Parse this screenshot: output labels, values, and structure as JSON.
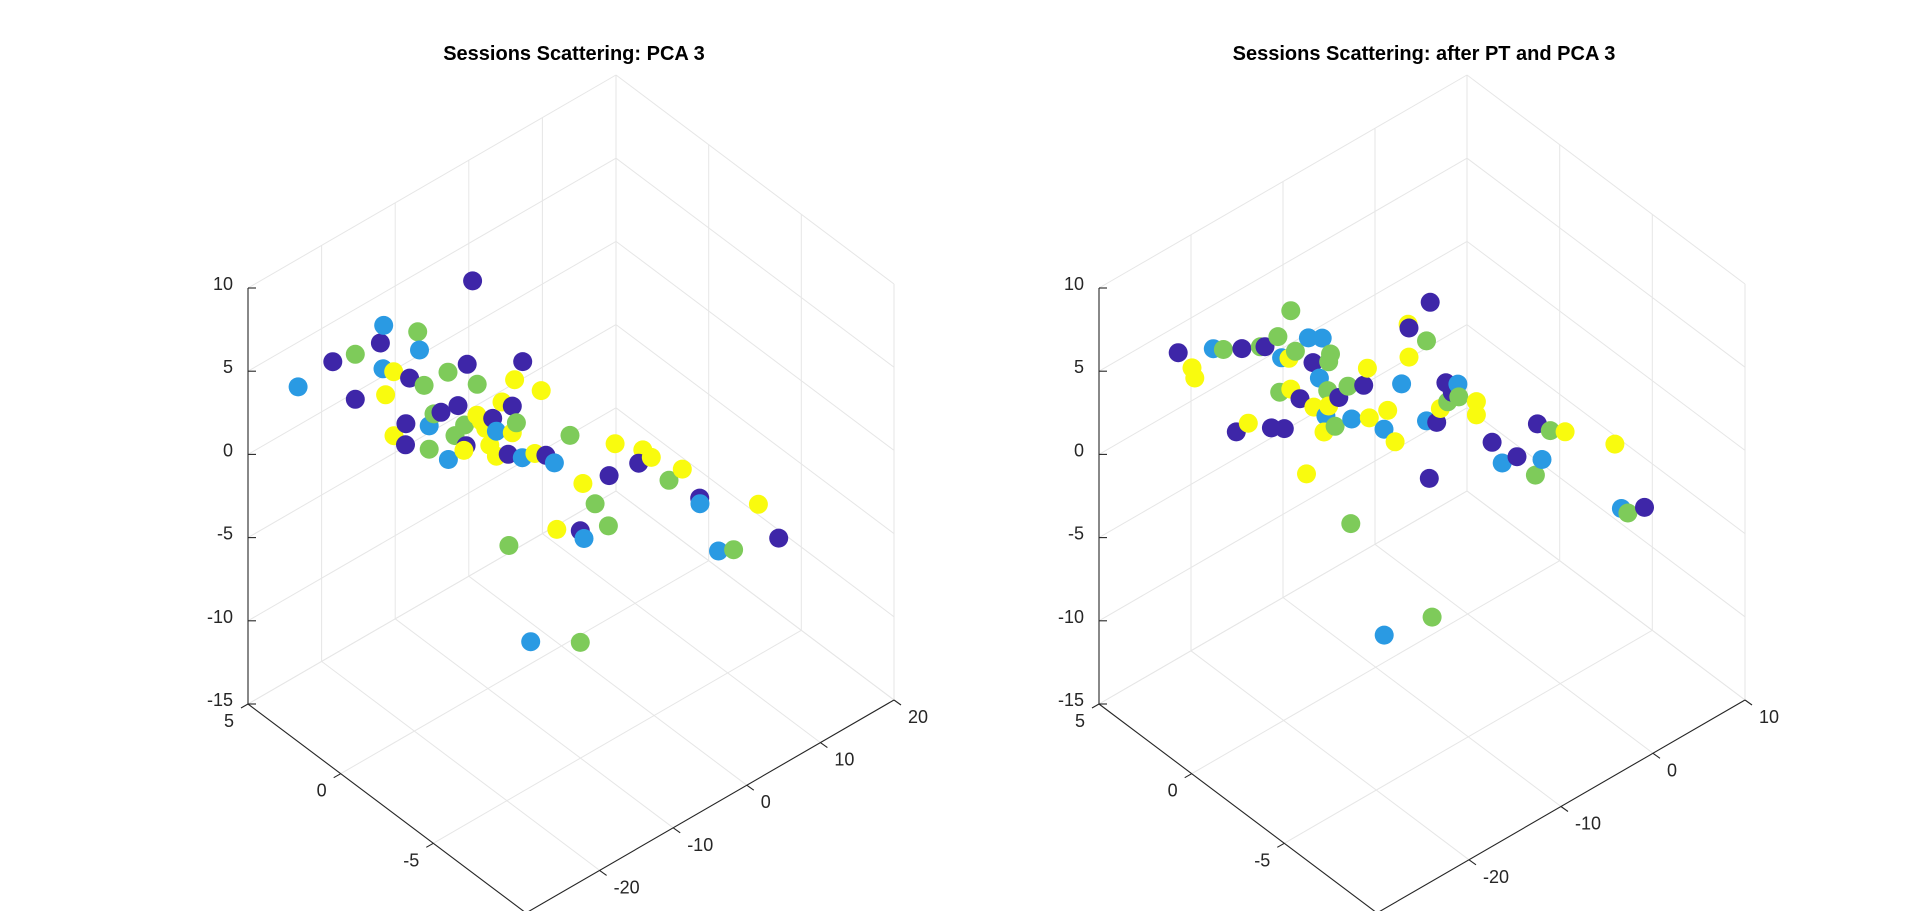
{
  "figure": {
    "background": "#ffffff"
  },
  "colors": {
    "c1": "#3e26a8",
    "c2": "#2a9ae3",
    "c3": "#7ecb5a",
    "c4": "#f9fb0e"
  },
  "chart_data": [
    {
      "type": "scatter",
      "title": "Sessions Scattering: PCA 3",
      "xlabel": "",
      "ylabel": "",
      "zlabel": "",
      "xlim": [
        -30,
        20
      ],
      "ylim": [
        -10,
        5
      ],
      "zlim": [
        -15,
        10
      ],
      "xticks": [
        "-30",
        "-20",
        "-10",
        "0",
        "10",
        "20"
      ],
      "yticks": [
        "-10",
        "-5",
        "0",
        "5"
      ],
      "zticks": [
        "-15",
        "-10",
        "-5",
        "0",
        "5",
        "10"
      ],
      "grid": true,
      "view": "3d-default",
      "points": [
        {
          "x": -21.5,
          "y": 3.8,
          "z": 4.4,
          "c": "c1"
        },
        {
          "x": -24.7,
          "y": 4.4,
          "z": 3.2,
          "c": "c2"
        },
        {
          "x": -19.7,
          "y": 3.3,
          "z": 4.8,
          "c": "c3"
        },
        {
          "x": -18.2,
          "y": 2.4,
          "z": 4.3,
          "c": "c2"
        },
        {
          "x": -17.3,
          "y": 2.9,
          "z": 5.2,
          "c": "c1"
        },
        {
          "x": -15.5,
          "y": 1.6,
          "z": 6.5,
          "c": "c3"
        },
        {
          "x": -17.5,
          "y": 2.1,
          "z": 4.2,
          "c": "c4"
        },
        {
          "x": -15.9,
          "y": 1.1,
          "z": 3.8,
          "c": "c3"
        },
        {
          "x": -16.6,
          "y": 1.6,
          "z": 4.0,
          "c": "c1"
        },
        {
          "x": -16.1,
          "y": 3.2,
          "z": 5.7,
          "c": "c2"
        },
        {
          "x": -13.9,
          "y": 0.6,
          "z": 4.5,
          "c": "c3"
        },
        {
          "x": -12.3,
          "y": 0.2,
          "z": 4.9,
          "c": "c1"
        },
        {
          "x": -8.3,
          "y": 1.5,
          "z": 7.8,
          "c": "c1"
        },
        {
          "x": -9.3,
          "y": -2.6,
          "z": 4.9,
          "c": "c4"
        },
        {
          "x": -10.4,
          "y": -1.6,
          "z": 5.0,
          "c": "c4"
        },
        {
          "x": -9.8,
          "y": -1.8,
          "z": 6.1,
          "c": "c1"
        },
        {
          "x": -11.1,
          "y": -1.2,
          "z": 3.5,
          "c": "c4"
        },
        {
          "x": -12.5,
          "y": -0.4,
          "z": 2.4,
          "c": "c4"
        },
        {
          "x": -11.7,
          "y": -0.1,
          "z": 3.8,
          "c": "c3"
        },
        {
          "x": -14.5,
          "y": 1.9,
          "z": 4.9,
          "c": "c2"
        },
        {
          "x": -12.3,
          "y": 0.7,
          "z": 2.0,
          "c": "c1"
        },
        {
          "x": -11.4,
          "y": -0.2,
          "z": 1.6,
          "c": "c4"
        },
        {
          "x": -10.6,
          "y": -0.5,
          "z": 1.8,
          "c": "c1"
        },
        {
          "x": -9.4,
          "y": -1.3,
          "z": 1.9,
          "c": "c3"
        },
        {
          "x": -9.2,
          "y": -1.0,
          "z": 1.0,
          "c": "c4"
        },
        {
          "x": -10.6,
          "y": -0.7,
          "z": 1.2,
          "c": "c2"
        },
        {
          "x": -9.7,
          "y": -1.2,
          "z": 2.9,
          "c": "c1"
        },
        {
          "x": -10.8,
          "y": -0.2,
          "z": 1.0,
          "c": "c4"
        },
        {
          "x": -11.9,
          "y": 0.5,
          "z": 0.9,
          "c": "c3"
        },
        {
          "x": -13.1,
          "y": 1.3,
          "z": 1.3,
          "c": "c1"
        },
        {
          "x": -13.8,
          "y": 1.4,
          "z": 1.3,
          "c": "c3"
        },
        {
          "x": -14.2,
          "y": 1.5,
          "z": 0.6,
          "c": "c2"
        },
        {
          "x": -15.6,
          "y": 2.2,
          "z": 0.5,
          "c": "c1"
        },
        {
          "x": -16.2,
          "y": 2.6,
          "z": -0.4,
          "c": "c4"
        },
        {
          "x": -15.4,
          "y": 2.3,
          "z": -0.9,
          "c": "c1"
        },
        {
          "x": -14.2,
          "y": 1.5,
          "z": -0.8,
          "c": "c3"
        },
        {
          "x": -12.7,
          "y": 0.7,
          "z": 0.3,
          "c": "c3"
        },
        {
          "x": -12.2,
          "y": 0.3,
          "z": -0.1,
          "c": "c1"
        },
        {
          "x": -11.0,
          "y": -0.5,
          "z": 0.3,
          "c": "c4"
        },
        {
          "x": -8.4,
          "y": -1.9,
          "z": 0.3,
          "c": "c4"
        },
        {
          "x": -7.9,
          "y": -2.3,
          "z": 0.4,
          "c": "c1"
        },
        {
          "x": -7.0,
          "y": -2.4,
          "z": -0.2,
          "c": "c2"
        },
        {
          "x": -8.6,
          "y": -1.3,
          "z": -0.4,
          "c": "c2"
        },
        {
          "x": -9.5,
          "y": -0.9,
          "z": -0.3,
          "c": "c1"
        },
        {
          "x": -10.1,
          "y": -0.5,
          "z": -0.6,
          "c": "c4"
        },
        {
          "x": -12.0,
          "y": 0.5,
          "z": -0.6,
          "c": "c4"
        },
        {
          "x": -13.1,
          "y": 0.9,
          "z": -1.2,
          "c": "c2"
        },
        {
          "x": -5.9,
          "y": -3.5,
          "z": -0.8,
          "c": "c4"
        },
        {
          "x": -4.1,
          "y": -4.2,
          "z": -0.2,
          "c": "c1"
        },
        {
          "x": -6.4,
          "y": -3.0,
          "z": 1.8,
          "c": "c3"
        },
        {
          "x": -4.3,
          "y": -4.6,
          "z": 2.1,
          "c": "c4"
        },
        {
          "x": -2.8,
          "y": -5.5,
          "z": 2.1,
          "c": "c4"
        },
        {
          "x": -1.9,
          "y": -5.6,
          "z": 1.5,
          "c": "c4"
        },
        {
          "x": -2.1,
          "y": -5.0,
          "z": 0.7,
          "c": "c1"
        },
        {
          "x": -0.2,
          "y": -6.6,
          "z": 1.2,
          "c": "c4"
        },
        {
          "x": -0.5,
          "y": -6.0,
          "z": 0.1,
          "c": "c3"
        },
        {
          "x": 1.4,
          "y": -6.9,
          "z": -0.7,
          "c": "c1"
        },
        {
          "x": 1.7,
          "y": -6.8,
          "z": -1.2,
          "c": "c2"
        },
        {
          "x": -9.2,
          "y": -3.4,
          "z": -2.8,
          "c": "c4"
        },
        {
          "x": -5.0,
          "y": -3.8,
          "z": -2.0,
          "c": "c3"
        },
        {
          "x": -6.0,
          "y": -3.4,
          "z": -3.7,
          "c": "c1"
        },
        {
          "x": -6.0,
          "y": -3.6,
          "z": -4.0,
          "c": "c2"
        },
        {
          "x": -4.2,
          "y": -4.2,
          "z": -3.2,
          "c": "c3"
        },
        {
          "x": -8.4,
          "y": -0.5,
          "z": -6.4,
          "c": "c3"
        },
        {
          "x": -7.2,
          "y": -1.2,
          "z": -11.9,
          "c": "c2"
        },
        {
          "x": -5.0,
          "y": -3.0,
          "z": -11.0,
          "c": "c3"
        },
        {
          "x": 2.2,
          "y": -7.6,
          "z": -3.5,
          "c": "c2"
        },
        {
          "x": 3.5,
          "y": -7.9,
          "z": -3.5,
          "c": "c3"
        },
        {
          "x": 5.6,
          "y": -9.5,
          "z": -2.0,
          "c": "c1"
        },
        {
          "x": 4.6,
          "y": -8.8,
          "z": -0.3,
          "c": "c4"
        },
        {
          "x": -19.2,
          "y": 3.5,
          "z": 1.8,
          "c": "c1"
        },
        {
          "x": -17.6,
          "y": 2.5,
          "z": 2.5,
          "c": "c4"
        }
      ]
    },
    {
      "type": "scatter",
      "title": "Sessions Scattering: after PT and PCA 3",
      "xlabel": "",
      "ylabel": "",
      "zlabel": "",
      "xlim": [
        -30,
        10
      ],
      "ylim": [
        -10,
        5
      ],
      "zlim": [
        -15,
        10
      ],
      "xticks": [
        "-30",
        "-20",
        "-10",
        "0",
        "10"
      ],
      "yticks": [
        "-10",
        "-5",
        "0",
        "5"
      ],
      "zticks": [
        "-15",
        "-10",
        "-5",
        "0",
        "5",
        "10"
      ],
      "grid": true,
      "view": "3d-default",
      "points": [
        {
          "x": -22.4,
          "y": 4.5,
          "z": 4.1,
          "c": "c1"
        },
        {
          "x": -21.3,
          "y": 4.3,
          "z": 3.0,
          "c": "c4"
        },
        {
          "x": -21.0,
          "y": 4.3,
          "z": 2.3,
          "c": "c4"
        },
        {
          "x": -20.6,
          "y": 3.5,
          "z": 4.6,
          "c": "c2"
        },
        {
          "x": -19.5,
          "y": 3.5,
          "z": 4.2,
          "c": "c3"
        },
        {
          "x": -18.7,
          "y": 2.9,
          "z": 4.5,
          "c": "c1"
        },
        {
          "x": -18.1,
          "y": 2.2,
          "z": 5.0,
          "c": "c3"
        },
        {
          "x": -17.0,
          "y": 1.8,
          "z": 5.6,
          "c": "c3"
        },
        {
          "x": -16.4,
          "y": 1.4,
          "z": 7.3,
          "c": "c3"
        },
        {
          "x": -15.1,
          "y": 1.1,
          "z": 5.5,
          "c": "c2"
        },
        {
          "x": -14.4,
          "y": 0.7,
          "z": 5.6,
          "c": "c2"
        },
        {
          "x": -15.9,
          "y": 1.4,
          "z": 4.7,
          "c": "c3"
        },
        {
          "x": -17.4,
          "y": 2.3,
          "z": 4.7,
          "c": "c1"
        },
        {
          "x": -16.6,
          "y": 1.4,
          "z": 4.5,
          "c": "c4"
        },
        {
          "x": -14.1,
          "y": 0.4,
          "z": 4.8,
          "c": "c3"
        },
        {
          "x": -13.9,
          "y": 0.6,
          "z": 4.1,
          "c": "c3"
        },
        {
          "x": -14.8,
          "y": 1.0,
          "z": 4.0,
          "c": "c1"
        },
        {
          "x": -16.2,
          "y": 2.0,
          "z": 3.9,
          "c": "c2"
        },
        {
          "x": -13.9,
          "y": 1.1,
          "z": 2.7,
          "c": "c2"
        },
        {
          "x": -13.6,
          "y": 0.8,
          "z": 2.1,
          "c": "c3"
        },
        {
          "x": -12.4,
          "y": 0.3,
          "z": 2.4,
          "c": "c3"
        },
        {
          "x": -12.8,
          "y": 0.6,
          "z": 1.6,
          "c": "c1"
        },
        {
          "x": -13.3,
          "y": 0.9,
          "z": 1.0,
          "c": "c4"
        },
        {
          "x": -14.6,
          "y": 1.8,
          "z": 1.1,
          "c": "c1"
        },
        {
          "x": -15.2,
          "y": 2.0,
          "z": 1.7,
          "c": "c4"
        },
        {
          "x": -16.0,
          "y": 2.2,
          "z": 1.6,
          "c": "c3"
        },
        {
          "x": -14.3,
          "y": 1.2,
          "z": 1.0,
          "c": "c4"
        },
        {
          "x": -13.6,
          "y": 0.9,
          "z": 0.5,
          "c": "c2"
        },
        {
          "x": -11.5,
          "y": -0.1,
          "z": 2.5,
          "c": "c1"
        },
        {
          "x": -11.1,
          "y": -0.1,
          "z": 3.4,
          "c": "c4"
        },
        {
          "x": -7.7,
          "y": -1.8,
          "z": 7.7,
          "c": "c1"
        },
        {
          "x": -9.2,
          "y": -1.4,
          "z": 6.3,
          "c": "c1"
        },
        {
          "x": -9.5,
          "y": -1.5,
          "z": 6.7,
          "c": "c4"
        },
        {
          "x": -8.5,
          "y": -2.0,
          "z": 5.8,
          "c": "c3"
        },
        {
          "x": -9.0,
          "y": -1.3,
          "z": 4.4,
          "c": "c4"
        },
        {
          "x": -9.6,
          "y": -1.2,
          "z": 2.9,
          "c": "c2"
        },
        {
          "x": -7.2,
          "y": -2.4,
          "z": 3.2,
          "c": "c1"
        },
        {
          "x": -6.7,
          "y": -2.8,
          "z": 3.3,
          "c": "c2"
        },
        {
          "x": -6.6,
          "y": -2.8,
          "z": 2.5,
          "c": "c3"
        },
        {
          "x": -6.5,
          "y": -2.4,
          "z": 2.4,
          "c": "c1"
        },
        {
          "x": -6.6,
          "y": -2.2,
          "z": 1.7,
          "c": "c3"
        },
        {
          "x": -9.9,
          "y": -0.6,
          "z": 0.9,
          "c": "c4"
        },
        {
          "x": -11.1,
          "y": -0.2,
          "z": 0.5,
          "c": "c4"
        },
        {
          "x": -12.0,
          "y": 0.3,
          "z": 0.3,
          "c": "c2"
        },
        {
          "x": -12.8,
          "y": 0.8,
          "z": -0.3,
          "c": "c3"
        },
        {
          "x": -13.4,
          "y": 1.1,
          "z": -0.7,
          "c": "c4"
        },
        {
          "x": -15.7,
          "y": 2.1,
          "z": -0.6,
          "c": "c1"
        },
        {
          "x": -16.3,
          "y": 2.5,
          "z": -0.7,
          "c": "c1"
        },
        {
          "x": -17.6,
          "y": 3.1,
          "z": -0.5,
          "c": "c4"
        },
        {
          "x": -18.1,
          "y": 3.5,
          "z": -1.2,
          "c": "c1"
        },
        {
          "x": -10.3,
          "y": -0.6,
          "z": -0.1,
          "c": "c2"
        },
        {
          "x": -9.7,
          "y": -0.9,
          "z": -0.8,
          "c": "c4"
        },
        {
          "x": -8.1,
          "y": -1.8,
          "z": 0.7,
          "c": "c2"
        },
        {
          "x": -7.6,
          "y": -2.1,
          "z": 0.7,
          "c": "c1"
        },
        {
          "x": -7.6,
          "y": -2.3,
          "z": 1.7,
          "c": "c4"
        },
        {
          "x": -5.5,
          "y": -3.2,
          "z": 1.4,
          "c": "c4"
        },
        {
          "x": -5.5,
          "y": -3.2,
          "z": 2.2,
          "c": "c4"
        },
        {
          "x": -2.9,
          "y": -5.2,
          "z": 1.7,
          "c": "c1"
        },
        {
          "x": -1.7,
          "y": -5.3,
          "z": 1.0,
          "c": "c3"
        },
        {
          "x": -1.3,
          "y": -5.9,
          "z": 1.3,
          "c": "c4"
        },
        {
          "x": -4.6,
          "y": -3.6,
          "z": -0.2,
          "c": "c1"
        },
        {
          "x": -3.7,
          "y": -4.5,
          "z": -0.6,
          "c": "c1"
        },
        {
          "x": -2.4,
          "y": -5.2,
          "z": -0.6,
          "c": "c2"
        },
        {
          "x": -3.9,
          "y": -3.8,
          "z": -1.5,
          "c": "c2"
        },
        {
          "x": -1.9,
          "y": -4.6,
          "z": -2.2,
          "c": "c3"
        },
        {
          "x": -7.6,
          "y": -1.7,
          "z": -3.0,
          "c": "c1"
        },
        {
          "x": -14.5,
          "y": 1.5,
          "z": -3.2,
          "c": "c4"
        },
        {
          "x": -11.9,
          "y": 0.4,
          "z": -6.1,
          "c": "c3"
        },
        {
          "x": -12.3,
          "y": -1.6,
          "z": -11.0,
          "c": "c2"
        },
        {
          "x": -9.1,
          "y": -2.6,
          "z": -10.1,
          "c": "c3"
        },
        {
          "x": 1.2,
          "y": -7.7,
          "z": -2.6,
          "c": "c2"
        },
        {
          "x": 1.5,
          "y": -7.9,
          "z": -2.8,
          "c": "c3"
        },
        {
          "x": 2.3,
          "y": -8.4,
          "z": -2.3,
          "c": "c1"
        },
        {
          "x": 0.9,
          "y": -7.5,
          "z": 1.2,
          "c": "c4"
        }
      ]
    }
  ]
}
